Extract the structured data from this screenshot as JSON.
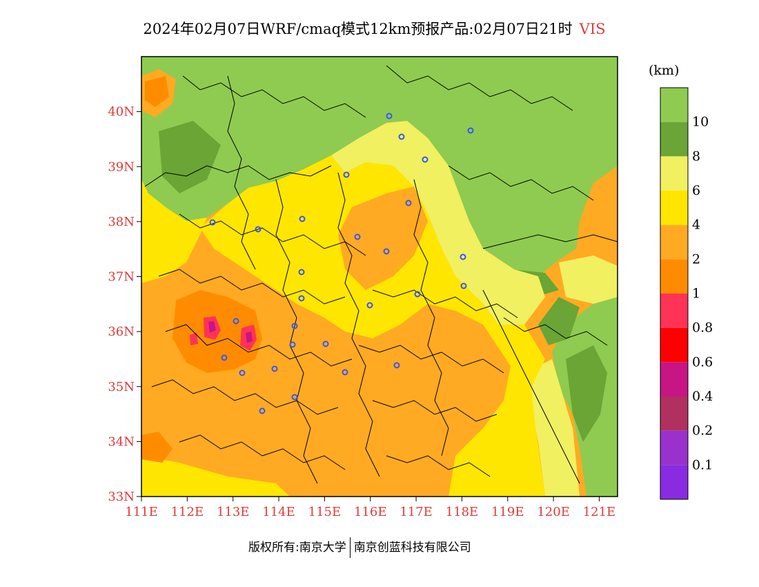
{
  "title": {
    "main": "2024年02月07日WRF/cmaq模式12km预报产品:02月07日21时",
    "variable": "VIS"
  },
  "map": {
    "lat_labels": [
      "40N",
      "39N",
      "38N",
      "37N",
      "36N",
      "35N",
      "34N",
      "33N"
    ],
    "lon_labels": [
      "111E",
      "112E",
      "113E",
      "114E",
      "115E",
      "116E",
      "117E",
      "118E",
      "119E",
      "120E",
      "121E"
    ],
    "lat_range": [
      33,
      41
    ],
    "lon_range": [
      111,
      121.4
    ],
    "station_marker_color": "#3355ff",
    "boundary_color": "#000000"
  },
  "colorbar": {
    "unit": "(km)",
    "bins": [
      {
        "color": "#8a2be2"
      },
      {
        "color": "#9932cc"
      },
      {
        "color": "#b03060"
      },
      {
        "color": "#c71585"
      },
      {
        "color": "#ff0000"
      },
      {
        "color": "#ff3355"
      },
      {
        "color": "#ff8c00"
      },
      {
        "color": "#ffaa22"
      },
      {
        "color": "#ffe600"
      },
      {
        "color": "#f0f060"
      },
      {
        "color": "#6aa535"
      },
      {
        "color": "#8fcb50"
      }
    ],
    "labels": [
      "0.1",
      "0.2",
      "0.4",
      "0.6",
      "0.8",
      "1",
      "2",
      "4",
      "6",
      "8",
      "10"
    ]
  },
  "footer": {
    "left": "版权所有:南京大学",
    "right": "南京创蓝科技有限公司"
  }
}
